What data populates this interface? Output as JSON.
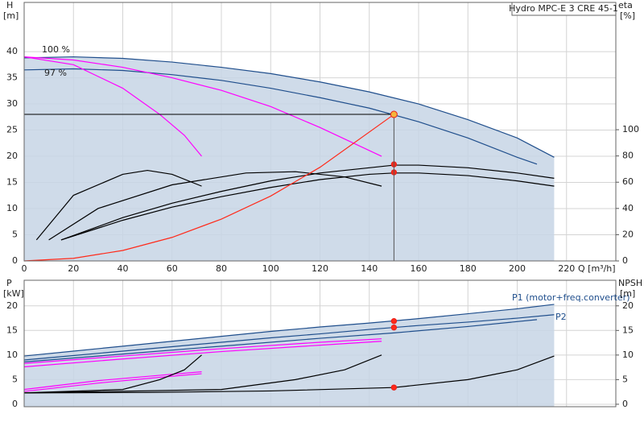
{
  "chart_data": [
    {
      "type": "line",
      "ylabel": "H",
      "yunit": "[m]",
      "y2label": "eta",
      "y2unit": "[%]",
      "xlabel": "Q [m³/h]",
      "annotation": "Hydro MPC-E 3 CRE 45-1",
      "curve_labels": [
        "100 %",
        "97 %"
      ],
      "xlim": [
        0,
        240
      ],
      "xticks": [
        0,
        20,
        40,
        60,
        80,
        100,
        120,
        140,
        160,
        180,
        200,
        220
      ],
      "ylim": [
        0,
        49.4
      ],
      "yticks": [
        0,
        5,
        10,
        15,
        20,
        25,
        30,
        35,
        40
      ],
      "y2lim": [
        0,
        197
      ],
      "y2ticks": [
        0,
        20,
        40,
        60,
        80,
        100
      ],
      "grid": true,
      "series": [
        {
          "fill": true,
          "color": "#1f4e8c",
          "x": [
            0,
            20,
            40,
            60,
            80,
            100,
            120,
            140,
            160,
            180,
            200,
            215
          ],
          "values": [
            38.8,
            39,
            38.7,
            38,
            37,
            35.8,
            34.2,
            32.3,
            30,
            27,
            23.5,
            19.8
          ]
        },
        {
          "color": "#1f4e8c",
          "x": [
            0,
            20,
            40,
            60,
            80,
            100,
            120,
            140,
            160,
            180,
            200,
            208
          ],
          "values": [
            36.5,
            36.7,
            36.4,
            35.6,
            34.5,
            33,
            31.2,
            29.2,
            26.6,
            23.5,
            19.8,
            18.5
          ]
        },
        {
          "color": "#ff00ff",
          "x": [
            0,
            20,
            40,
            55,
            65,
            72
          ],
          "values": [
            39,
            37.5,
            33,
            28,
            24,
            20
          ]
        },
        {
          "color": "#ff00ff",
          "x": [
            0,
            20,
            40,
            60,
            80,
            100,
            120,
            145
          ],
          "values": [
            39,
            38.4,
            37,
            35,
            32.6,
            29.5,
            25.5,
            20
          ]
        },
        {
          "color": "#000000",
          "axis": "y2",
          "x": [
            15,
            40,
            60,
            80,
            100,
            120,
            140,
            150,
            160,
            180,
            200,
            215
          ],
          "values": [
            16,
            33,
            44,
            53,
            61,
            67,
            71,
            73,
            73,
            71,
            67,
            63
          ]
        },
        {
          "color": "#000000",
          "axis": "y2",
          "x": [
            15,
            40,
            60,
            80,
            100,
            120,
            140,
            150,
            160,
            180,
            200,
            215
          ],
          "values": [
            16,
            31,
            41,
            49,
            56,
            62,
            66,
            67,
            67,
            65,
            61,
            57
          ]
        },
        {
          "color": "#000000",
          "axis": "y2",
          "x": [
            5,
            20,
            40,
            50,
            60,
            72
          ],
          "values": [
            16,
            50,
            66,
            69,
            66,
            57
          ]
        },
        {
          "color": "#000000",
          "axis": "y2",
          "x": [
            10,
            30,
            60,
            90,
            110,
            130,
            145
          ],
          "values": [
            16,
            40,
            58,
            67,
            68,
            64,
            57
          ]
        },
        {
          "color": "#ff2a1a",
          "x": [
            0,
            20,
            40,
            60,
            80,
            100,
            120,
            150
          ],
          "values": [
            0,
            0.5,
            2,
            4.5,
            8,
            12.4,
            17.9,
            28
          ]
        },
        {
          "color": "#ff2a1a",
          "axis": "y2",
          "dots": true,
          "x": [
            150,
            150
          ],
          "values": [
            73.6,
            67.5
          ]
        },
        {
          "color": "#f5b53a",
          "dots": true,
          "guides": true,
          "x": [
            150
          ],
          "values": [
            28
          ]
        }
      ]
    },
    {
      "type": "line",
      "ylabel": "P",
      "yunit": "[kW]",
      "y2label": "NPSH",
      "y2unit": "[m]",
      "curve_labels": [
        "P1 (motor+freq.converter)",
        "P2"
      ],
      "xlim": [
        0,
        240
      ],
      "xticks": [
        0,
        20,
        40,
        60,
        80,
        100,
        120,
        140,
        160,
        180,
        200,
        220
      ],
      "ylim": [
        -0.5,
        25.2
      ],
      "yticks": [
        0,
        5,
        10,
        15,
        20
      ],
      "y2lim": [
        -0.5,
        25.2
      ],
      "y2ticks": [
        0,
        5,
        10,
        15,
        20
      ],
      "grid": true,
      "series": [
        {
          "fill": true,
          "color": "#1f4e8c",
          "x": [
            0,
            20,
            40,
            60,
            80,
            100,
            120,
            140,
            160,
            180,
            200,
            215
          ],
          "values": [
            9.8,
            10.8,
            11.8,
            12.8,
            13.8,
            14.8,
            15.7,
            16.5,
            17.4,
            18.4,
            19.4,
            20.3
          ]
        },
        {
          "color": "#1f4e8c",
          "x": [
            0,
            20,
            40,
            60,
            80,
            100,
            120,
            140,
            160,
            180,
            200,
            215
          ],
          "values": [
            9,
            9.9,
            10.8,
            11.7,
            12.6,
            13.5,
            14.3,
            15.2,
            16,
            16.7,
            17.5,
            18.2
          ]
        },
        {
          "color": "#1f4e8c",
          "x": [
            0,
            40,
            80,
            120,
            150,
            180,
            208
          ],
          "values": [
            8.6,
            10.2,
            11.8,
            13.4,
            14.5,
            15.8,
            17.2
          ]
        },
        {
          "color": "#ff00ff",
          "x": [
            0,
            40,
            80,
            120,
            145
          ],
          "values": [
            8.3,
            9.8,
            11.3,
            12.6,
            13.3
          ]
        },
        {
          "color": "#ff00ff",
          "x": [
            0,
            40,
            80,
            120,
            145
          ],
          "values": [
            7.6,
            9.2,
            10.7,
            12,
            12.8
          ]
        },
        {
          "color": "#ff00ff",
          "x": [
            0,
            30,
            60,
            72
          ],
          "values": [
            3,
            4.8,
            6.1,
            6.6
          ]
        },
        {
          "color": "#ff00ff",
          "x": [
            0,
            30,
            60,
            72
          ],
          "values": [
            2.6,
            4.3,
            5.7,
            6.2
          ]
        },
        {
          "color": "#000000",
          "axis": "y2",
          "x": [
            0,
            50,
            100,
            150,
            180,
            200,
            215
          ],
          "values": [
            2.3,
            2.4,
            2.7,
            3.4,
            5,
            7,
            9.8
          ]
        },
        {
          "color": "#000000",
          "axis": "y2",
          "x": [
            0,
            40,
            55,
            65,
            72
          ],
          "values": [
            2.3,
            3,
            5,
            7,
            10
          ]
        },
        {
          "color": "#000000",
          "axis": "y2",
          "x": [
            0,
            80,
            110,
            130,
            145
          ],
          "values": [
            2.3,
            3,
            5,
            7,
            10
          ]
        },
        {
          "color": "#ff2a1a",
          "dots": true,
          "x": [
            150,
            150
          ],
          "values": [
            16.9,
            15.6
          ]
        },
        {
          "color": "#ff2a1a",
          "axis": "y2",
          "dots": true,
          "x": [
            150
          ],
          "values": [
            3.4
          ]
        }
      ]
    }
  ]
}
